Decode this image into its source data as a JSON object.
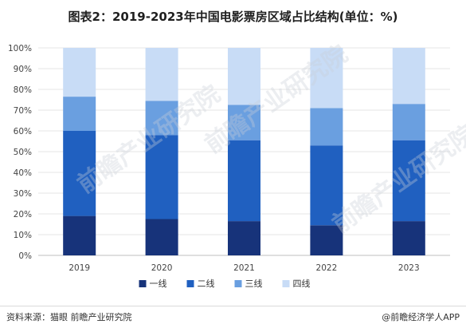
{
  "title": "图表2：2019-2023年中国电影票房区域占比结构(单位：%)",
  "footer": {
    "source": "资料来源：猫眼 前瞻产业研究院",
    "brand": "@前瞻经济学人APP"
  },
  "watermark_text": "前瞻产业研究院",
  "colors": {
    "tier1": "#17337a",
    "tier2": "#2060c0",
    "tier3": "#6a9fe0",
    "tier4": "#c8dcf6"
  },
  "chart_data": {
    "type": "bar",
    "stacked": true,
    "categories": [
      "2019",
      "2020",
      "2021",
      "2022",
      "2023"
    ],
    "series": [
      {
        "name": "一线",
        "values": [
          19,
          17.5,
          16.5,
          14.5,
          16.5
        ]
      },
      {
        "name": "二线",
        "values": [
          41,
          40.5,
          39,
          38.5,
          39
        ]
      },
      {
        "name": "三线",
        "values": [
          16.5,
          16.5,
          17,
          18,
          17.5
        ]
      },
      {
        "name": "四线",
        "values": [
          23.5,
          25.5,
          27.5,
          29,
          27
        ]
      }
    ],
    "yticks": [
      "0%",
      "10%",
      "20%",
      "30%",
      "40%",
      "50%",
      "60%",
      "70%",
      "80%",
      "90%",
      "100%"
    ],
    "ylim": [
      0,
      100
    ],
    "grid": true,
    "legend_position": "bottom"
  }
}
